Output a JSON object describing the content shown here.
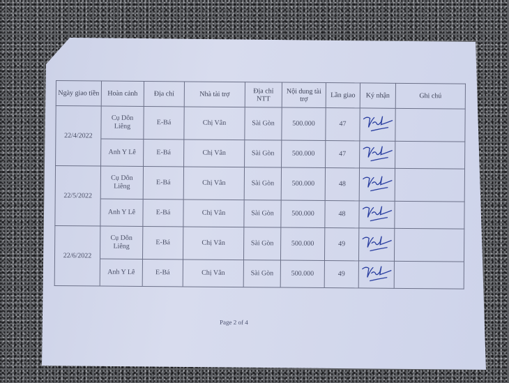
{
  "table": {
    "headers": [
      "Ngày giao tiền",
      "Hoàn cảnh",
      "Địa chỉ",
      "Nhà tài trợ",
      "Địa chỉ NTT",
      "Nội dung tài trợ",
      "Lần giao",
      "Ký nhận",
      "Ghi chú"
    ],
    "groups": [
      {
        "date": "22/4/2022",
        "rows": [
          {
            "hoan_canh": "Cụ Dôn Liêng",
            "dia_chi": "E-Bá",
            "nha_tai_tro": "Chị Vân",
            "dia_chi_ntt": "Sài Gòn",
            "noi_dung": "500.000",
            "lan_giao": "47",
            "ghi_chu": ""
          },
          {
            "hoan_canh": "Anh Y Lê",
            "dia_chi": "E-Bá",
            "nha_tai_tro": "Chị Vân",
            "dia_chi_ntt": "Sài Gòn",
            "noi_dung": "500.000",
            "lan_giao": "47",
            "ghi_chu": ""
          }
        ]
      },
      {
        "date": "22/5/2022",
        "rows": [
          {
            "hoan_canh": "Cụ Dôn Liêng",
            "dia_chi": "E-Bá",
            "nha_tai_tro": "Chị Vân",
            "dia_chi_ntt": "Sài Gòn",
            "noi_dung": "500.000",
            "lan_giao": "48",
            "ghi_chu": ""
          },
          {
            "hoan_canh": "Anh Y Lê",
            "dia_chi": "E-Bá",
            "nha_tai_tro": "Chị Vân",
            "dia_chi_ntt": "Sài Gòn",
            "noi_dung": "500.000",
            "lan_giao": "48",
            "ghi_chu": ""
          }
        ]
      },
      {
        "date": "22/6/2022",
        "rows": [
          {
            "hoan_canh": "Cụ Dôn Liêng",
            "dia_chi": "E-Bá",
            "nha_tai_tro": "Chị Vân",
            "dia_chi_ntt": "Sài Gòn",
            "noi_dung": "500.000",
            "lan_giao": "49",
            "ghi_chu": ""
          },
          {
            "hoan_canh": "Anh Y Lê",
            "dia_chi": "E-Bá",
            "nha_tai_tro": "Chị Vân",
            "dia_chi_ntt": "Sài Gòn",
            "noi_dung": "500.000",
            "lan_giao": "49",
            "ghi_chu": ""
          }
        ]
      }
    ]
  },
  "footer": {
    "page_label": "Page 2 of 4"
  },
  "colors": {
    "signature_ink": "#2a3fa0"
  }
}
